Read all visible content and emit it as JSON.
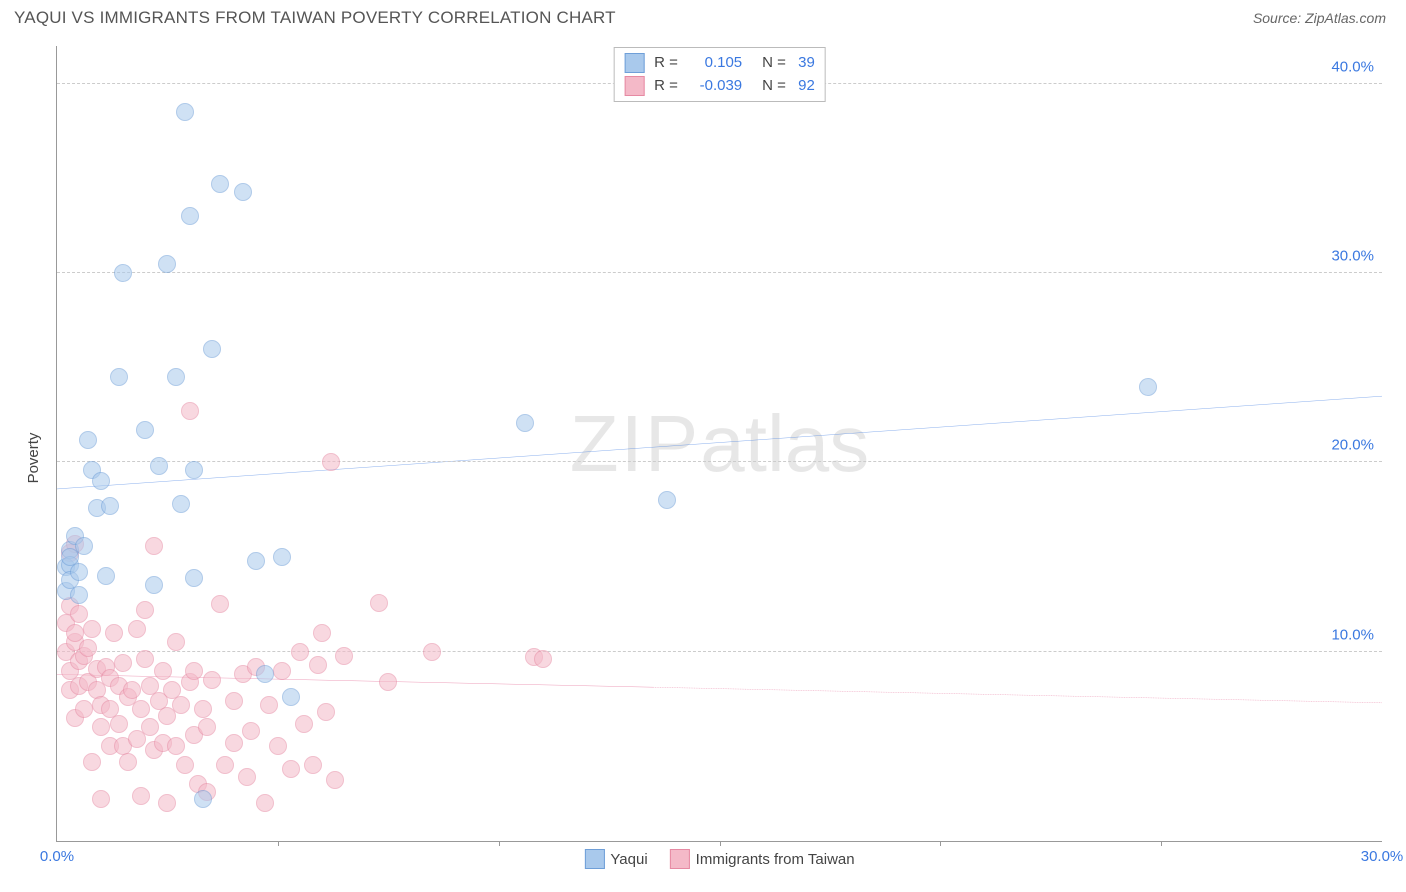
{
  "header": {
    "title": "YAQUI VS IMMIGRANTS FROM TAIWAN POVERTY CORRELATION CHART",
    "source": "Source: ZipAtlas.com"
  },
  "watermark": {
    "left": "ZIP",
    "right": "atlas"
  },
  "ylabel": "Poverty",
  "chart": {
    "type": "scatter",
    "xlim": [
      0,
      30
    ],
    "ylim": [
      0,
      42
    ],
    "x_ticks_major": [
      0,
      30
    ],
    "x_ticks_minor": [
      5,
      10,
      15,
      20,
      25
    ],
    "y_ticks": [
      10,
      20,
      30,
      40
    ],
    "x_tick_format": "{v}.0%",
    "y_tick_format": "{v}.0%",
    "grid_color": "#cccccc",
    "axis_color": "#999999",
    "tick_label_color": "#3a78e0",
    "background_color": "#ffffff",
    "marker_radius": 8,
    "marker_opacity": 0.55,
    "series": [
      {
        "name": "Yaqui",
        "label": "Yaqui",
        "fill": "#a9c9ec",
        "stroke": "#6f9fd8",
        "line_color": "#3a78e0",
        "r": "0.105",
        "n": "39",
        "trend": {
          "x1": 0,
          "y1": 18.6,
          "x2": 30,
          "y2": 23.5,
          "solid_until_x": 30
        },
        "points": [
          [
            0.2,
            13.2
          ],
          [
            0.2,
            14.5
          ],
          [
            0.3,
            15.4
          ],
          [
            0.3,
            14.6
          ],
          [
            0.3,
            13.8
          ],
          [
            0.3,
            15.0
          ],
          [
            0.4,
            16.1
          ],
          [
            0.5,
            14.2
          ],
          [
            0.5,
            13.0
          ],
          [
            0.6,
            15.6
          ],
          [
            0.7,
            21.2
          ],
          [
            0.8,
            19.6
          ],
          [
            0.9,
            17.6
          ],
          [
            1.0,
            19.0
          ],
          [
            1.1,
            14.0
          ],
          [
            1.2,
            17.7
          ],
          [
            1.4,
            24.5
          ],
          [
            1.5,
            30.0
          ],
          [
            2.0,
            21.7
          ],
          [
            2.2,
            13.5
          ],
          [
            2.3,
            19.8
          ],
          [
            2.5,
            30.5
          ],
          [
            2.7,
            24.5
          ],
          [
            2.8,
            17.8
          ],
          [
            2.9,
            38.5
          ],
          [
            3.0,
            33.0
          ],
          [
            3.1,
            19.6
          ],
          [
            3.1,
            13.9
          ],
          [
            3.3,
            2.2
          ],
          [
            3.5,
            26.0
          ],
          [
            3.7,
            34.7
          ],
          [
            4.2,
            34.3
          ],
          [
            4.5,
            14.8
          ],
          [
            4.7,
            8.8
          ],
          [
            5.1,
            15.0
          ],
          [
            5.3,
            7.6
          ],
          [
            10.6,
            22.1
          ],
          [
            13.8,
            18.0
          ],
          [
            24.7,
            24.0
          ]
        ]
      },
      {
        "name": "Taiwan",
        "label": "Immigrants from Taiwan",
        "fill": "#f4b9c8",
        "stroke": "#e68aa3",
        "line_color": "#e05a8a",
        "r": "-0.039",
        "n": "92",
        "trend": {
          "x1": 0,
          "y1": 8.8,
          "x2": 30,
          "y2": 7.3,
          "solid_until_x": 13.5
        },
        "points": [
          [
            0.2,
            11.5
          ],
          [
            0.2,
            10.0
          ],
          [
            0.3,
            12.4
          ],
          [
            0.3,
            8.0
          ],
          [
            0.3,
            9.0
          ],
          [
            0.3,
            15.2
          ],
          [
            0.4,
            15.7
          ],
          [
            0.4,
            10.5
          ],
          [
            0.4,
            6.5
          ],
          [
            0.4,
            11.0
          ],
          [
            0.5,
            9.5
          ],
          [
            0.5,
            8.2
          ],
          [
            0.5,
            12.0
          ],
          [
            0.6,
            9.8
          ],
          [
            0.6,
            7.0
          ],
          [
            0.7,
            10.2
          ],
          [
            0.7,
            8.4
          ],
          [
            0.8,
            11.2
          ],
          [
            0.8,
            4.2
          ],
          [
            0.9,
            8.0
          ],
          [
            0.9,
            9.1
          ],
          [
            1.0,
            6.0
          ],
          [
            1.0,
            7.2
          ],
          [
            1.0,
            2.2
          ],
          [
            1.1,
            9.2
          ],
          [
            1.2,
            7.0
          ],
          [
            1.2,
            5.0
          ],
          [
            1.2,
            8.6
          ],
          [
            1.3,
            11.0
          ],
          [
            1.4,
            6.2
          ],
          [
            1.4,
            8.2
          ],
          [
            1.5,
            5.0
          ],
          [
            1.5,
            9.4
          ],
          [
            1.6,
            7.6
          ],
          [
            1.6,
            4.2
          ],
          [
            1.7,
            8.0
          ],
          [
            1.8,
            11.2
          ],
          [
            1.8,
            5.4
          ],
          [
            1.9,
            7.0
          ],
          [
            1.9,
            2.4
          ],
          [
            2.0,
            9.6
          ],
          [
            2.0,
            12.2
          ],
          [
            2.1,
            6.0
          ],
          [
            2.1,
            8.2
          ],
          [
            2.2,
            4.8
          ],
          [
            2.2,
            15.6
          ],
          [
            2.3,
            7.4
          ],
          [
            2.4,
            5.2
          ],
          [
            2.4,
            9.0
          ],
          [
            2.5,
            6.6
          ],
          [
            2.5,
            2.0
          ],
          [
            2.6,
            8.0
          ],
          [
            2.7,
            10.5
          ],
          [
            2.7,
            5.0
          ],
          [
            2.8,
            7.2
          ],
          [
            2.9,
            4.0
          ],
          [
            3.0,
            22.7
          ],
          [
            3.0,
            8.4
          ],
          [
            3.1,
            5.6
          ],
          [
            3.1,
            9.0
          ],
          [
            3.2,
            3.0
          ],
          [
            3.3,
            7.0
          ],
          [
            3.4,
            6.0
          ],
          [
            3.4,
            2.6
          ],
          [
            3.5,
            8.5
          ],
          [
            3.7,
            12.5
          ],
          [
            3.8,
            4.0
          ],
          [
            4.0,
            7.4
          ],
          [
            4.0,
            5.2
          ],
          [
            4.2,
            8.8
          ],
          [
            4.3,
            3.4
          ],
          [
            4.4,
            5.8
          ],
          [
            4.5,
            9.2
          ],
          [
            4.7,
            2.0
          ],
          [
            4.8,
            7.2
          ],
          [
            5.0,
            5.0
          ],
          [
            5.1,
            9.0
          ],
          [
            5.3,
            3.8
          ],
          [
            5.5,
            10.0
          ],
          [
            5.6,
            6.2
          ],
          [
            5.8,
            4.0
          ],
          [
            5.9,
            9.3
          ],
          [
            6.0,
            11.0
          ],
          [
            6.1,
            6.8
          ],
          [
            6.2,
            20.0
          ],
          [
            6.3,
            3.2
          ],
          [
            6.5,
            9.8
          ],
          [
            7.3,
            12.6
          ],
          [
            7.5,
            8.4
          ],
          [
            8.5,
            10.0
          ],
          [
            10.8,
            9.7
          ],
          [
            11.0,
            9.6
          ]
        ]
      }
    ]
  },
  "legend_bottom": [
    {
      "label": "Yaqui",
      "fill": "#a9c9ec",
      "stroke": "#6f9fd8"
    },
    {
      "label": "Immigrants from Taiwan",
      "fill": "#f4b9c8",
      "stroke": "#e68aa3"
    }
  ]
}
